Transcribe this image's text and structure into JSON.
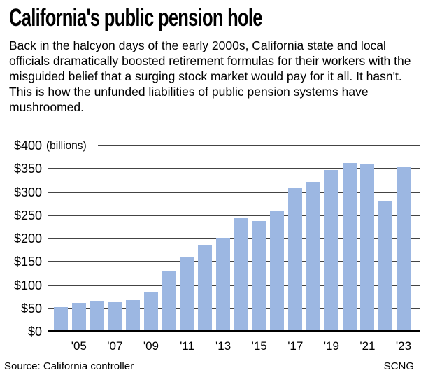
{
  "title": "California's public pension hole",
  "intro": "Back in the halcyon days of the early 2000s, California state and local officials dramatically boosted retirement formulas for their workers with the misguided belief that a surging stock market would pay for it all. It hasn't. This is how the unfunded liabilities of public pension systems have mushroomed.",
  "source": "Source: California controller",
  "credit": "SCNG",
  "chart_data": {
    "type": "bar",
    "title": "California's public pension hole",
    "unit_label": "(billions)",
    "categories": [
      "2004",
      "2005",
      "2006",
      "2007",
      "2008",
      "2009",
      "2010",
      "2011",
      "2012",
      "2013",
      "2014",
      "2015",
      "2016",
      "2017",
      "2018",
      "2019",
      "2020",
      "2021",
      "2022",
      "2023"
    ],
    "values": [
      52,
      61,
      66,
      64,
      67,
      85,
      130,
      160,
      186,
      201,
      245,
      238,
      258,
      308,
      322,
      347,
      362,
      360,
      281,
      354
    ],
    "x_tick_labels": [
      "'05",
      "'07",
      "'09",
      "'11",
      "'13",
      "'15",
      "'17",
      "'19",
      "'21",
      "'23"
    ],
    "yticks": [
      "$400",
      "$350",
      "$300",
      "$250",
      "$200",
      "$150",
      "$100",
      "$50",
      "$0"
    ],
    "ylim": [
      0,
      400
    ],
    "ytick_step": 50,
    "xlabel": "",
    "ylabel": "$ billions",
    "grid": "horizontal",
    "legend": "none",
    "bar_color": "#9cb7e2",
    "grid_color": "#444444",
    "axis_color": "#000000"
  }
}
